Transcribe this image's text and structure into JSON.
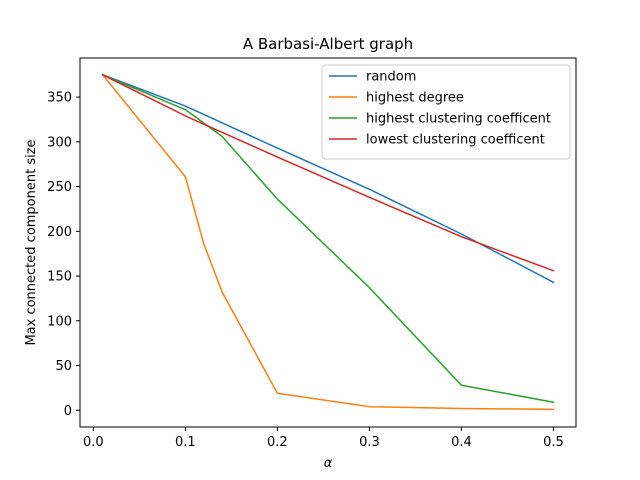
{
  "chart_data": {
    "type": "line",
    "title": "A Barbasi-Albert graph",
    "xlabel": "α",
    "ylabel": "Max connected component size",
    "xlim": [
      -0.0145,
      0.5245
    ],
    "ylim": [
      -18.7,
      393.7
    ],
    "xticks": [
      0.0,
      0.1,
      0.2,
      0.3,
      0.4,
      0.5
    ],
    "xtick_labels": [
      "0.0",
      "0.1",
      "0.2",
      "0.3",
      "0.4",
      "0.5"
    ],
    "yticks": [
      0,
      50,
      100,
      150,
      200,
      250,
      300,
      350
    ],
    "ytick_labels": [
      "0",
      "50",
      "100",
      "150",
      "200",
      "250",
      "300",
      "350"
    ],
    "grid": false,
    "legend_position": "top-right",
    "series": [
      {
        "name": "random",
        "color": "#1f77b4",
        "x": [
          0.01,
          0.1,
          0.2,
          0.3,
          0.4,
          0.5
        ],
        "y": [
          375,
          340,
          293,
          247,
          197,
          143
        ]
      },
      {
        "name": "highest degree",
        "color": "#ff7f0e",
        "x": [
          0.01,
          0.1,
          0.12,
          0.14,
          0.2,
          0.3,
          0.4,
          0.5
        ],
        "y": [
          375,
          261,
          186,
          132,
          19,
          4,
          2,
          1
        ]
      },
      {
        "name": "highest clustering coefficent",
        "color": "#2ca02c",
        "x": [
          0.01,
          0.1,
          0.14,
          0.2,
          0.3,
          0.4,
          0.5
        ],
        "y": [
          375,
          336,
          306,
          236,
          137,
          28,
          9
        ]
      },
      {
        "name": "lowest clustering coefficent",
        "color": "#d62728",
        "x": [
          0.01,
          0.1,
          0.2,
          0.3,
          0.4,
          0.5
        ],
        "y": [
          375,
          329,
          283,
          238,
          194,
          156
        ]
      }
    ]
  }
}
